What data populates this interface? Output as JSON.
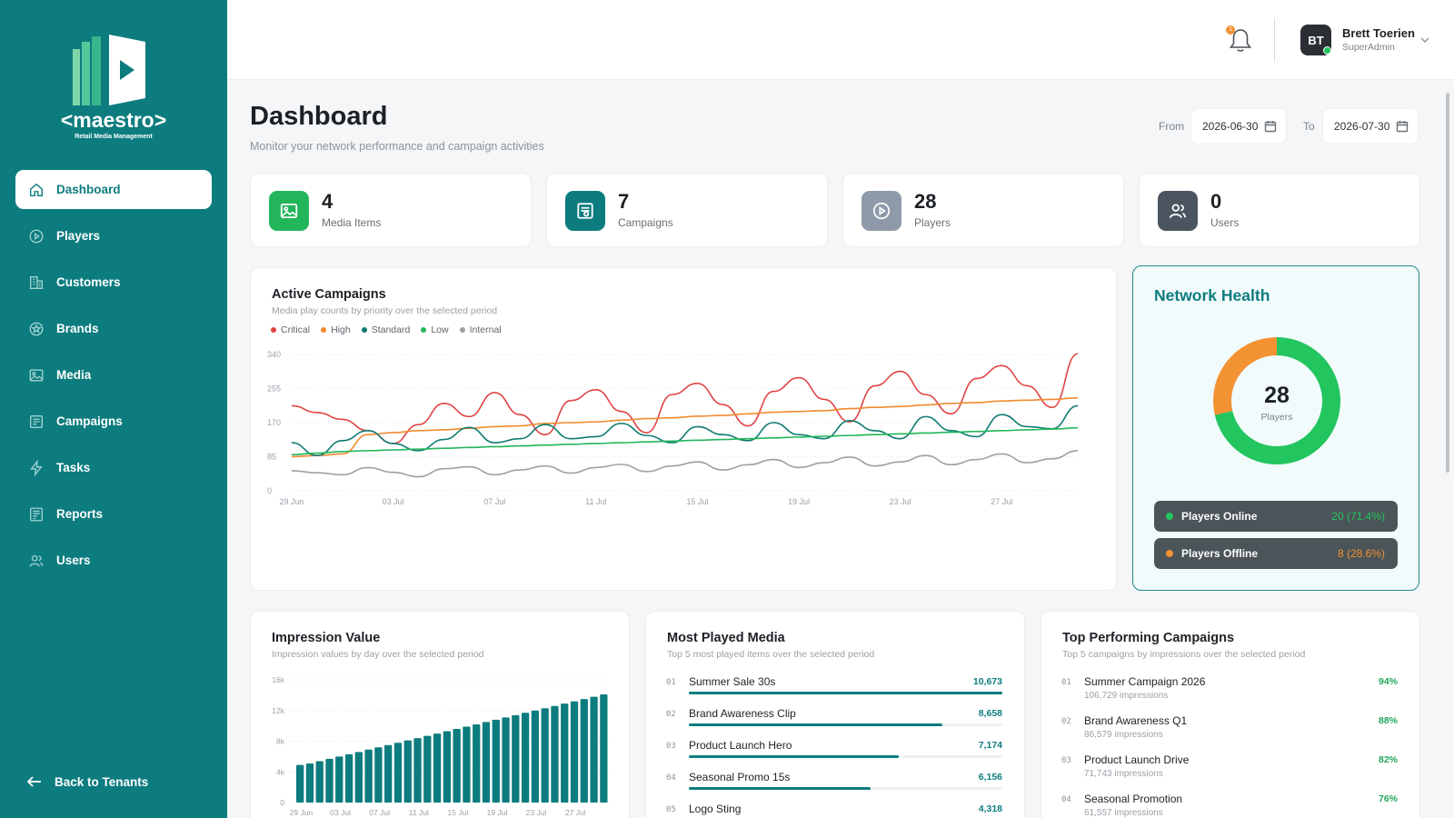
{
  "brand": {
    "name": "<maestro>",
    "tagline": "Retail Media Management"
  },
  "sidebar": {
    "items": [
      {
        "label": "Dashboard",
        "icon": "home-icon",
        "active": true
      },
      {
        "label": "Players",
        "icon": "play-circle-icon"
      },
      {
        "label": "Customers",
        "icon": "building-icon"
      },
      {
        "label": "Brands",
        "icon": "star-badge-icon"
      },
      {
        "label": "Media",
        "icon": "image-icon"
      },
      {
        "label": "Campaigns",
        "icon": "campaign-icon"
      },
      {
        "label": "Tasks",
        "icon": "lightning-icon"
      },
      {
        "label": "Reports",
        "icon": "report-icon"
      },
      {
        "label": "Users",
        "icon": "users-icon"
      }
    ],
    "back_label": "Back to Tenants"
  },
  "topbar": {
    "notification_count": "1",
    "user": {
      "initials": "BT",
      "name": "Brett Toerien",
      "role": "SuperAdmin"
    }
  },
  "page": {
    "title": "Dashboard",
    "subtitle": "Monitor your network performance and campaign activities",
    "from_label": "From",
    "from_value": "2026-06-30",
    "to_label": "To",
    "to_value": "2026-07-30"
  },
  "stats": [
    {
      "value": "4",
      "label": "Media Items",
      "icon": "image-icon",
      "color": "#22b55a"
    },
    {
      "value": "7",
      "label": "Campaigns",
      "icon": "campaign-icon",
      "color": "#0d7c7f"
    },
    {
      "value": "28",
      "label": "Players",
      "icon": "play-circle-icon",
      "color": "#8e9aa9"
    },
    {
      "value": "0",
      "label": "Users",
      "icon": "users-icon",
      "color": "#4b5560"
    }
  ],
  "active_campaigns": {
    "title": "Active Campaigns",
    "subtitle": "Media play counts by priority over the selected period"
  },
  "network_health": {
    "title": "Network Health",
    "total": "28",
    "total_label": "Players",
    "online_label": "Players Online",
    "online_value": "20 (71.4%)",
    "offline_label": "Players Offline",
    "offline_value": "8 (28.6%)",
    "online_color": "#22c55e",
    "offline_color": "#f39233"
  },
  "impression_value": {
    "title": "Impression Value",
    "subtitle": "Impression values by day over the selected period"
  },
  "most_played": {
    "title": "Most Played Media",
    "subtitle": "Top 5 most played items over the selected period",
    "items": [
      {
        "rank": "01",
        "name": "Summer Sale 30s",
        "value": "10,673",
        "share": 1.0
      },
      {
        "rank": "02",
        "name": "Brand Awareness Clip",
        "value": "8,658",
        "share": 0.81
      },
      {
        "rank": "03",
        "name": "Product Launch Hero",
        "value": "7,174",
        "share": 0.67
      },
      {
        "rank": "04",
        "name": "Seasonal Promo 15s",
        "value": "6,156",
        "share": 0.58
      },
      {
        "rank": "05",
        "name": "Logo Sting",
        "value": "4,318",
        "share": 0.4
      }
    ]
  },
  "top_campaigns": {
    "title": "Top Performing Campaigns",
    "subtitle": "Top 5 campaigns by impressions over the selected period",
    "items": [
      {
        "rank": "01",
        "name": "Summer Campaign 2026",
        "impressions": "106,729 impressions",
        "pct": "94%"
      },
      {
        "rank": "02",
        "name": "Brand Awareness Q1",
        "impressions": "86,579 impressions",
        "pct": "88%"
      },
      {
        "rank": "03",
        "name": "Product Launch Drive",
        "impressions": "71,743 impressions",
        "pct": "82%"
      },
      {
        "rank": "04",
        "name": "Seasonal Promotion",
        "impressions": "61,557 impressions",
        "pct": "76%"
      }
    ]
  },
  "chart_data": [
    {
      "type": "line",
      "title": "Active Campaigns",
      "x": [
        "29 Jun",
        "30 Jun",
        "01 Jul",
        "02 Jul",
        "03 Jul",
        "04 Jul",
        "05 Jul",
        "06 Jul",
        "07 Jul",
        "08 Jul",
        "09 Jul",
        "10 Jul",
        "11 Jul",
        "12 Jul",
        "13 Jul",
        "14 Jul",
        "15 Jul",
        "16 Jul",
        "17 Jul",
        "18 Jul",
        "19 Jul",
        "20 Jul",
        "21 Jul",
        "22 Jul",
        "23 Jul",
        "24 Jul",
        "25 Jul",
        "26 Jul",
        "27 Jul",
        "28 Jul",
        "29 Jul",
        "30 Jul"
      ],
      "x_ticks": [
        "29 Jun",
        "03 Jul",
        "07 Jul",
        "11 Jul",
        "15 Jul",
        "19 Jul",
        "23 Jul",
        "27 Jul"
      ],
      "y_ticks": [
        "340",
        "255",
        "170",
        "85",
        "0"
      ],
      "ylim": [
        0,
        340
      ],
      "grid": true,
      "legend_position": "top-left",
      "series": [
        {
          "name": "Critical",
          "color": "#e04444",
          "values": [
            212,
            195,
            178,
            150,
            118,
            165,
            218,
            185,
            245,
            190,
            140,
            225,
            252,
            198,
            145,
            240,
            268,
            215,
            162,
            248,
            282,
            228,
            172,
            262,
            298,
            240,
            192,
            280,
            312,
            262,
            208,
            342
          ]
        },
        {
          "name": "High",
          "color": "#f08a2f",
          "values": [
            85,
            88,
            92,
            140,
            145,
            150,
            152,
            156,
            160,
            162,
            168,
            170,
            172,
            176,
            180,
            182,
            186,
            188,
            192,
            196,
            198,
            200,
            205,
            208,
            210,
            214,
            218,
            220,
            224,
            226,
            228,
            232
          ]
        },
        {
          "name": "Standard",
          "color": "#0f7b72",
          "values": [
            120,
            88,
            125,
            150,
            118,
            100,
            128,
            158,
            120,
            130,
            165,
            130,
            135,
            168,
            138,
            120,
            160,
            140,
            125,
            170,
            140,
            130,
            175,
            150,
            130,
            185,
            150,
            135,
            190,
            160,
            155,
            212
          ]
        },
        {
          "name": "Low",
          "color": "#22b55a",
          "values": [
            90,
            94,
            98,
            100,
            102,
            104,
            106,
            108,
            110,
            112,
            114,
            116,
            118,
            120,
            122,
            124,
            126,
            128,
            130,
            132,
            134,
            136,
            138,
            140,
            142,
            144,
            146,
            148,
            150,
            152,
            154,
            157
          ]
        },
        {
          "name": "Internal",
          "color": "#9aa0a6",
          "values": [
            50,
            45,
            40,
            58,
            46,
            35,
            55,
            60,
            40,
            52,
            62,
            44,
            58,
            66,
            48,
            62,
            72,
            52,
            65,
            78,
            58,
            70,
            84,
            62,
            72,
            88,
            65,
            78,
            92,
            70,
            80,
            100
          ]
        }
      ]
    },
    {
      "type": "pie",
      "title": "Network Health",
      "categories": [
        "Players Online",
        "Players Offline"
      ],
      "values": [
        20,
        8
      ]
    },
    {
      "type": "bar",
      "title": "Impression Value",
      "x_ticks": [
        "29 Jun",
        "03 Jul",
        "07 Jul",
        "11 Jul",
        "15 Jul",
        "19 Jul",
        "23 Jul",
        "27 Jul"
      ],
      "y_ticks": [
        "16k",
        "12k",
        "8k",
        "4k",
        "0"
      ],
      "ylim": [
        0,
        16000
      ],
      "values": [
        4900,
        5100,
        5400,
        5700,
        6000,
        6300,
        6600,
        6900,
        7200,
        7500,
        7800,
        8100,
        8400,
        8700,
        9000,
        9300,
        9600,
        9900,
        10200,
        10500,
        10800,
        11100,
        11400,
        11700,
        12000,
        12300,
        12600,
        12900,
        13200,
        13500,
        13800,
        14100
      ]
    }
  ]
}
